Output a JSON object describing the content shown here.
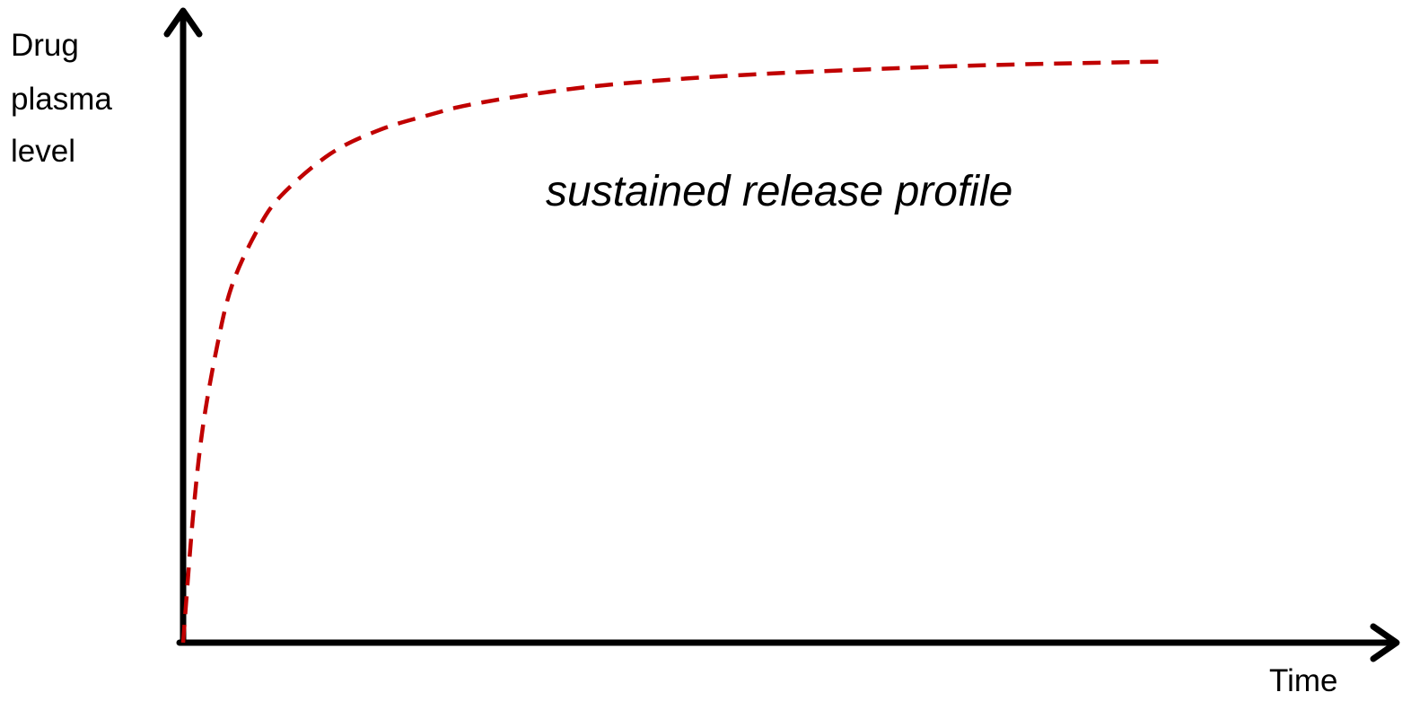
{
  "chart_data": {
    "type": "line",
    "title": "",
    "xlabel": "Time",
    "ylabel_lines": [
      "Drug",
      "plasma",
      "level"
    ],
    "annotation": "sustained release profile",
    "xlim": [
      0,
      10
    ],
    "ylim": [
      0,
      10
    ],
    "ticks_shown": false,
    "grid": false,
    "legend": "none",
    "series": [
      {
        "line_style": "dashed",
        "color": "#c00000",
        "x": [
          0,
          0.1,
          0.2,
          0.35,
          0.5,
          0.75,
          1.0,
          1.5,
          2.0,
          2.5,
          3.0,
          4.0,
          5.0,
          6.0,
          7.0,
          8.0,
          9.0,
          10.0
        ],
        "y": [
          0,
          2.1,
          3.6,
          5.0,
          6.0,
          6.9,
          7.5,
          8.2,
          8.6,
          8.85,
          9.05,
          9.3,
          9.45,
          9.55,
          9.62,
          9.68,
          9.72,
          9.75
        ]
      }
    ]
  },
  "colors": {
    "axis": "#000000",
    "curve": "#c00000"
  }
}
